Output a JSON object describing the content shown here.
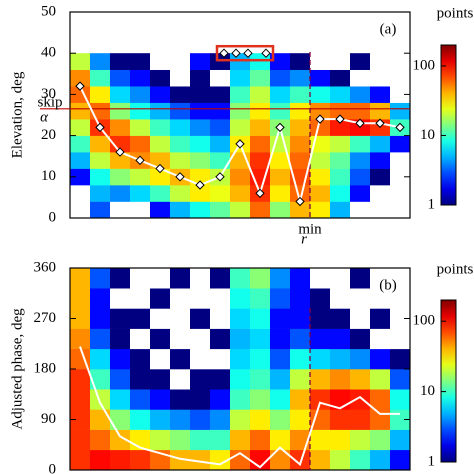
{
  "chart_data": [
    {
      "type": "heatmap",
      "panel_label": "(a)",
      "ylabel": "Elevation, deg",
      "xlim": [
        0,
        17
      ],
      "ylim": [
        0,
        50
      ],
      "yticks": [
        0,
        10,
        20,
        30,
        40,
        50
      ],
      "row_edges": [
        0,
        4,
        8,
        12,
        16,
        20,
        24,
        28,
        32,
        36,
        40
      ],
      "z": [
        [
          0,
          3,
          0,
          0,
          2,
          5,
          8,
          12,
          20,
          60,
          15,
          40,
          30,
          5,
          0,
          0,
          0
        ],
        [
          0,
          5,
          4,
          6,
          10,
          20,
          30,
          25,
          40,
          80,
          30,
          60,
          40,
          8,
          2,
          0,
          0
        ],
        [
          2,
          8,
          15,
          20,
          30,
          40,
          30,
          20,
          50,
          90,
          40,
          70,
          30,
          10,
          3,
          1,
          0
        ],
        [
          5,
          20,
          40,
          50,
          40,
          20,
          15,
          10,
          40,
          80,
          30,
          60,
          20,
          12,
          4,
          2,
          0
        ],
        [
          10,
          40,
          80,
          60,
          20,
          10,
          8,
          5,
          30,
          60,
          20,
          50,
          25,
          20,
          10,
          5,
          2
        ],
        [
          20,
          80,
          50,
          20,
          10,
          6,
          4,
          3,
          20,
          40,
          15,
          40,
          60,
          90,
          100,
          80,
          10
        ],
        [
          40,
          60,
          15,
          8,
          5,
          3,
          2,
          2,
          15,
          30,
          10,
          30,
          50,
          60,
          60,
          40,
          5
        ],
        [
          60,
          30,
          6,
          4,
          2,
          1,
          1,
          1,
          10,
          20,
          6,
          10,
          8,
          6,
          4,
          2,
          0
        ],
        [
          50,
          10,
          3,
          2,
          1,
          0,
          1,
          0,
          6,
          12,
          3,
          4,
          2,
          1,
          0,
          0,
          0
        ],
        [
          20,
          4,
          1,
          1,
          0,
          0,
          2,
          1,
          5,
          8,
          2,
          1,
          0,
          0,
          1,
          0,
          0
        ]
      ],
      "colorbar": {
        "title": "points",
        "clim": [
          1,
          200
        ],
        "log": true,
        "ticks": [
          1,
          10,
          100
        ]
      },
      "median": {
        "color": "#ffffff",
        "markers": true,
        "x": [
          0.5,
          1.5,
          2.5,
          3.5,
          4.5,
          5.5,
          6.5,
          7.5,
          8.5,
          9.5,
          10.5,
          11.5,
          12.5,
          13.5,
          14.5,
          15.5,
          16.5
        ],
        "y": [
          32,
          22,
          16,
          14,
          12,
          10,
          8,
          10,
          18,
          6,
          22,
          4,
          24,
          24,
          23,
          23,
          22
        ]
      },
      "outliers": {
        "x": [
          7.7,
          8.3,
          8.9,
          9.8
        ],
        "y": [
          40,
          40,
          40,
          40
        ],
        "box_color": "#e0301e"
      },
      "hline": {
        "y": 26.5,
        "color": "#c00000",
        "label": "α",
        "label_sup": "skip"
      },
      "vline": {
        "x": 12,
        "color": "#800040",
        "label": "r",
        "label_sup": "min"
      }
    },
    {
      "type": "heatmap",
      "panel_label": "(b)",
      "ylabel": "Adjusted phase, deg",
      "xlim": [
        0,
        17
      ],
      "ylim": [
        0,
        360
      ],
      "yticks": [
        0,
        90,
        180,
        270,
        360
      ],
      "row_edges": [
        0,
        36,
        72,
        108,
        144,
        180,
        216,
        252,
        288,
        324,
        360
      ],
      "z": [
        [
          80,
          100,
          90,
          80,
          60,
          40,
          40,
          30,
          60,
          100,
          50,
          80,
          40,
          20,
          10,
          5,
          2
        ],
        [
          80,
          60,
          40,
          30,
          20,
          15,
          10,
          10,
          40,
          60,
          30,
          50,
          30,
          30,
          20,
          15,
          5
        ],
        [
          80,
          40,
          15,
          8,
          5,
          4,
          3,
          4,
          20,
          30,
          15,
          30,
          60,
          80,
          80,
          60,
          10
        ],
        [
          80,
          20,
          6,
          3,
          2,
          1,
          1,
          2,
          10,
          15,
          8,
          40,
          80,
          100,
          90,
          60,
          8
        ],
        [
          80,
          10,
          3,
          1,
          1,
          0,
          1,
          1,
          8,
          10,
          5,
          20,
          40,
          50,
          40,
          20,
          3
        ],
        [
          60,
          6,
          2,
          1,
          0,
          1,
          0,
          0,
          6,
          8,
          3,
          8,
          6,
          5,
          4,
          2,
          1
        ],
        [
          50,
          3,
          1,
          0,
          1,
          0,
          0,
          1,
          5,
          6,
          2,
          3,
          2,
          2,
          1,
          0,
          0
        ],
        [
          40,
          2,
          1,
          1,
          0,
          0,
          1,
          0,
          6,
          8,
          2,
          2,
          1,
          1,
          0,
          1,
          0
        ],
        [
          40,
          2,
          0,
          0,
          1,
          0,
          0,
          0,
          8,
          10,
          3,
          2,
          1,
          0,
          0,
          0,
          0
        ],
        [
          40,
          3,
          1,
          0,
          0,
          1,
          0,
          1,
          10,
          15,
          4,
          2,
          0,
          0,
          1,
          0,
          0
        ]
      ],
      "colorbar": {
        "title": "points",
        "clim": [
          1,
          200
        ],
        "log": true,
        "ticks": [
          1,
          10,
          100
        ]
      },
      "median": {
        "color": "#ffffff",
        "markers": false,
        "x": [
          0.5,
          1.5,
          2.5,
          3.5,
          4.5,
          5.5,
          6.5,
          7.5,
          8.5,
          9.5,
          10.5,
          11.5,
          12.5,
          13.5,
          14.5,
          15.5,
          16.5
        ],
        "y": [
          220,
          120,
          60,
          40,
          30,
          20,
          15,
          10,
          30,
          5,
          40,
          10,
          120,
          110,
          130,
          100,
          100
        ]
      },
      "vline": {
        "x": 12,
        "color": "#800040"
      }
    }
  ]
}
